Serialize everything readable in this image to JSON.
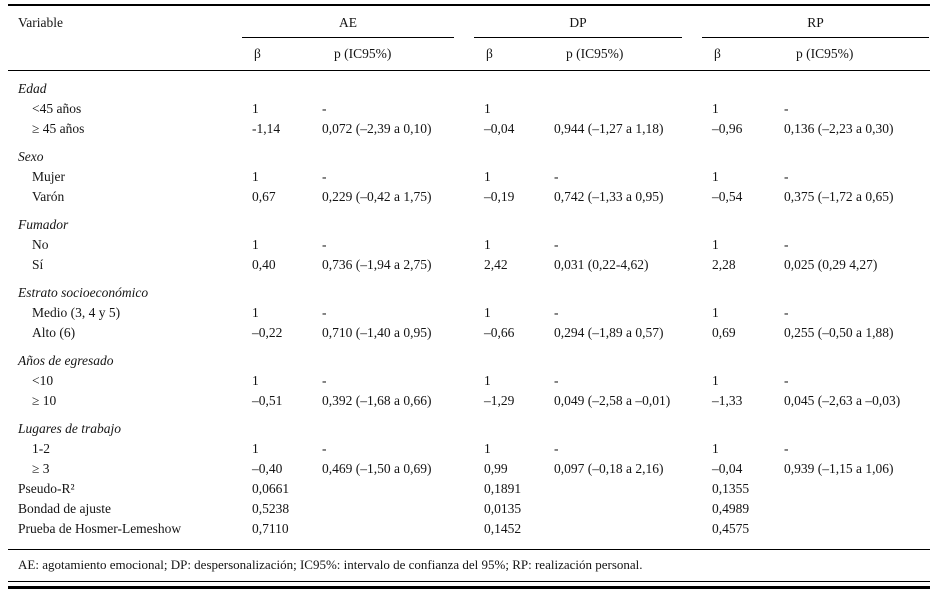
{
  "table": {
    "variable_header": "Variable",
    "col_groups": [
      {
        "label": "AE"
      },
      {
        "label": "DP"
      },
      {
        "label": "RP"
      }
    ],
    "sub_headers": [
      "β",
      "p (IC95%)"
    ],
    "sections": [
      {
        "group": "Edad",
        "rows": [
          {
            "label": "<45 años",
            "cells": [
              "1",
              "-",
              "1",
              "",
              "1",
              "-"
            ]
          },
          {
            "label": "≥ 45 años",
            "cells": [
              "-1,14",
              "0,072 (–2,39 a 0,10)",
              "–0,04",
              "0,944 (–1,27 a 1,18)",
              "–0,96",
              "0,136 (–2,23 a 0,30)"
            ]
          }
        ]
      },
      {
        "group": "Sexo",
        "rows": [
          {
            "label": "Mujer",
            "cells": [
              "1",
              "-",
              "1",
              "-",
              "1",
              "-"
            ]
          },
          {
            "label": "Varón",
            "cells": [
              "0,67",
              "0,229 (–0,42 a 1,75)",
              "–0,19",
              "0,742 (–1,33 a 0,95)",
              "–0,54",
              "0,375 (–1,72 a 0,65)"
            ]
          }
        ]
      },
      {
        "group": "Fumador",
        "rows": [
          {
            "label": "No",
            "cells": [
              "1",
              "-",
              "1",
              "-",
              "1",
              "-"
            ]
          },
          {
            "label": "Sí",
            "cells": [
              "0,40",
              "0,736 (–1,94 a 2,75)",
              "2,42",
              "0,031 (0,22-4,62)",
              "2,28",
              "0,025 (0,29 4,27)"
            ]
          }
        ]
      },
      {
        "group": "Estrato socioeconómico",
        "rows": [
          {
            "label": "Medio (3, 4 y 5)",
            "cells": [
              "1",
              "-",
              "1",
              "-",
              "1",
              "-"
            ]
          },
          {
            "label": "Alto (6)",
            "cells": [
              "–0,22",
              "0,710 (–1,40 a 0,95)",
              "–0,66",
              "0,294 (–1,89 a 0,57)",
              "0,69",
              "0,255 (–0,50 a 1,88)"
            ]
          }
        ]
      },
      {
        "group": "Años de egresado",
        "rows": [
          {
            "label": "<10",
            "cells": [
              "1",
              "-",
              "1",
              "-",
              "1",
              "-"
            ]
          },
          {
            "label": "≥ 10",
            "cells": [
              "–0,51",
              "0,392 (–1,68 a 0,66)",
              "–1,29",
              "0,049 (–2,58 a –0,01)",
              "–1,33",
              "0,045 (–2,63 a –0,03)"
            ]
          }
        ]
      },
      {
        "group": "Lugares de trabajo",
        "rows": [
          {
            "label": "1-2",
            "cells": [
              "1",
              "-",
              "1",
              "-",
              "1",
              "-"
            ]
          },
          {
            "label": "≥ 3",
            "cells": [
              "–0,40",
              "0,469 (–1,50 a 0,69)",
              "0,99",
              "0,097 (–0,18 a 2,16)",
              "–0,04",
              "0,939 (–1,15 a 1,06)"
            ]
          }
        ]
      }
    ],
    "summary_rows": [
      {
        "label": "Pseudo-R²",
        "cells": [
          "0,0661",
          "0,1891",
          "0,1355"
        ]
      },
      {
        "label": "Bondad de ajuste",
        "cells": [
          "0,5238",
          "0,0135",
          "0,4989"
        ]
      },
      {
        "label": "Prueba de Hosmer-Lemeshow",
        "cells": [
          "0,7110",
          "0,1452",
          "0,4575"
        ]
      }
    ],
    "footnote": "AE: agotamiento emocional; DP: despersonalización; IC95%: intervalo de confianza del 95%; RP: realización personal."
  }
}
